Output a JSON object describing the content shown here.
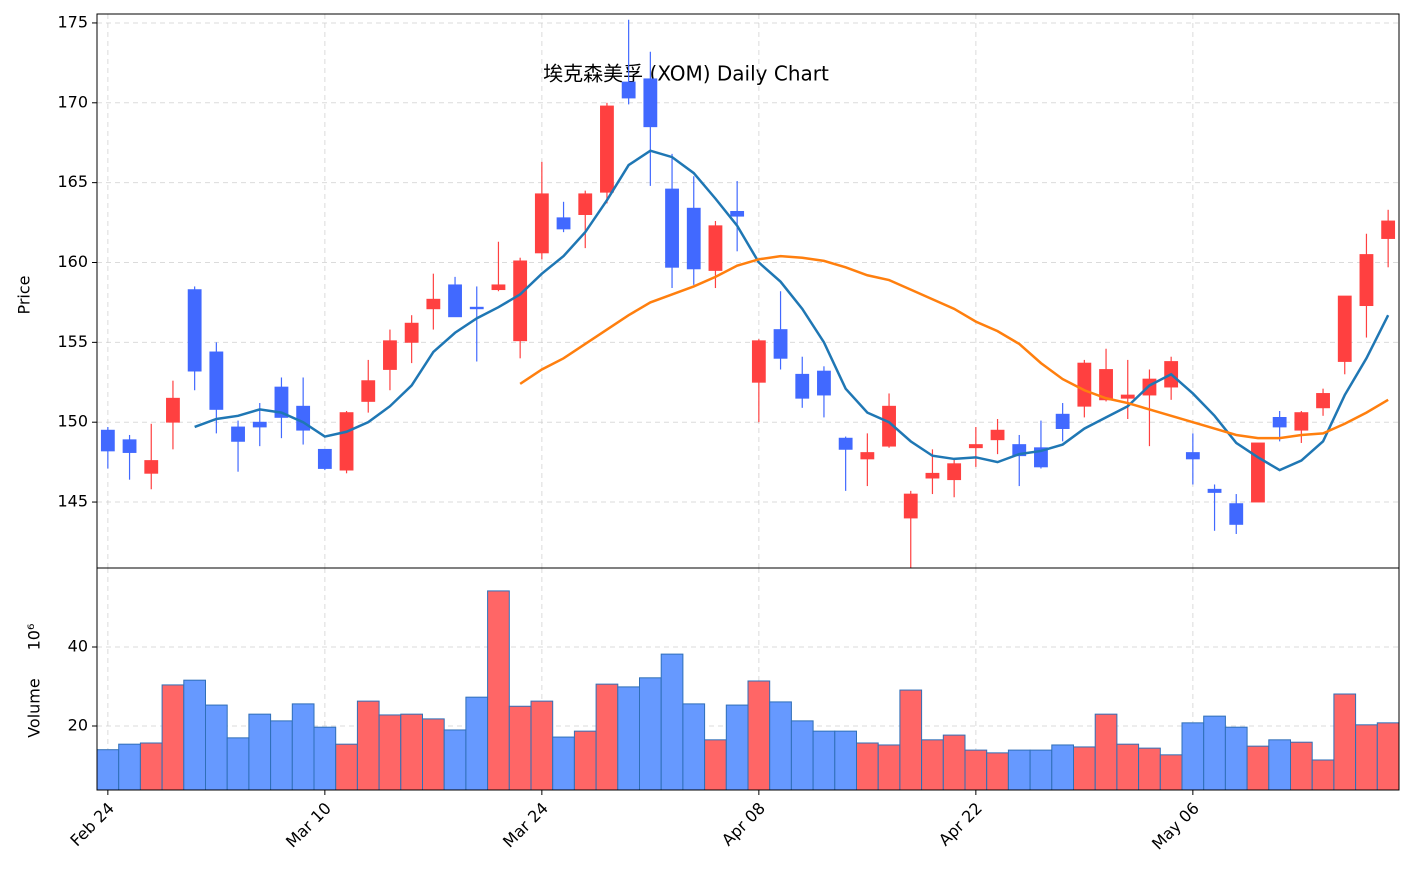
{
  "chart_data": [
    {
      "type": "candlestick",
      "title": "埃克森美孚 (XOM) Daily Chart",
      "ylabel": "Price",
      "open": [
        149.5,
        148.9,
        146.8,
        150.0,
        158.3,
        154.4,
        149.7,
        150.0,
        152.2,
        151.0,
        148.3,
        147.0,
        151.3,
        153.3,
        155.0,
        157.1,
        158.6,
        157.2,
        158.3,
        155.1,
        160.6,
        162.8,
        163.0,
        164.4,
        171.3,
        171.5,
        164.6,
        163.4,
        159.5,
        163.2,
        152.5,
        155.8,
        153.0,
        153.2,
        149.0,
        147.7,
        148.5,
        144.0,
        146.5,
        146.4,
        148.4,
        148.9,
        148.6,
        148.4,
        150.5,
        151.0,
        151.4,
        151.5,
        151.7,
        152.2,
        148.1,
        145.8,
        144.9,
        145.0,
        150.3,
        149.5,
        150.9,
        153.8,
        157.3,
        161.5
      ],
      "high": [
        149.7,
        149.2,
        149.9,
        152.6,
        158.5,
        155.0,
        150.1,
        151.2,
        152.8,
        152.8,
        148.3,
        150.7,
        153.9,
        155.8,
        156.7,
        159.3,
        159.1,
        158.5,
        161.3,
        160.3,
        166.3,
        163.8,
        164.5,
        170.0,
        175.2,
        173.2,
        166.8,
        165.4,
        162.6,
        165.1,
        155.2,
        158.2,
        154.1,
        153.5,
        149.1,
        149.3,
        151.8,
        145.7,
        148.3,
        147.7,
        149.7,
        150.2,
        149.2,
        150.1,
        151.2,
        153.9,
        154.6,
        153.9,
        153.3,
        154.1,
        149.3,
        146.1,
        145.5,
        148.7,
        150.7,
        150.7,
        152.1,
        157.9,
        161.8,
        163.3
      ],
      "low": [
        147.1,
        146.4,
        145.8,
        148.3,
        152.0,
        149.3,
        146.9,
        148.5,
        149.0,
        148.6,
        147.0,
        146.8,
        150.6,
        152.0,
        153.7,
        155.8,
        156.6,
        153.8,
        158.2,
        154.0,
        160.2,
        161.9,
        160.9,
        163.7,
        169.9,
        164.8,
        158.4,
        158.6,
        158.4,
        160.7,
        150.0,
        153.3,
        150.9,
        150.3,
        145.7,
        146.0,
        148.4,
        140.9,
        145.5,
        145.3,
        147.2,
        148.0,
        146.0,
        147.1,
        148.8,
        150.3,
        151.3,
        150.2,
        148.5,
        151.4,
        146.1,
        143.2,
        143.0,
        145.0,
        148.8,
        148.7,
        150.4,
        153.0,
        155.3,
        159.7
      ],
      "close": [
        148.2,
        148.1,
        147.6,
        151.5,
        153.2,
        150.8,
        148.8,
        149.7,
        150.3,
        149.5,
        147.1,
        150.6,
        152.6,
        155.1,
        156.2,
        157.7,
        156.6,
        157.1,
        158.6,
        160.1,
        164.3,
        162.1,
        164.3,
        169.8,
        170.3,
        168.5,
        159.7,
        159.6,
        162.3,
        162.9,
        155.1,
        154.0,
        151.5,
        151.7,
        148.3,
        148.1,
        151.0,
        145.5,
        146.8,
        147.4,
        148.6,
        149.5,
        147.9,
        147.2,
        149.6,
        153.7,
        153.3,
        151.7,
        152.7,
        153.8,
        147.7,
        145.6,
        143.6,
        148.7,
        149.7,
        150.6,
        151.8,
        157.9,
        160.5,
        162.6
      ],
      "up_color": "#ff4040",
      "down_color": "#4169ff",
      "lines": [
        {
          "color": "#1f77b4",
          "values": [
            null,
            null,
            null,
            null,
            149.7,
            150.2,
            150.4,
            150.8,
            150.6,
            150.0,
            149.1,
            149.4,
            150.0,
            151.0,
            152.3,
            154.4,
            155.6,
            156.5,
            157.2,
            158.0,
            159.3,
            160.4,
            161.9,
            163.9,
            166.1,
            167.0,
            166.6,
            165.6,
            164.0,
            162.3,
            160.0,
            158.8,
            157.1,
            155.0,
            152.1,
            150.6,
            150.0,
            148.8,
            147.9,
            147.7,
            147.8,
            147.5,
            148.0,
            148.2,
            148.6,
            149.6,
            150.3,
            151.0,
            152.3,
            153.0,
            151.8,
            150.4,
            148.7,
            147.8,
            147.0,
            147.6,
            148.8,
            151.7,
            154.0,
            156.7
          ]
        },
        {
          "color": "#ff7f0e",
          "values": [
            null,
            null,
            null,
            null,
            null,
            null,
            null,
            null,
            null,
            null,
            null,
            null,
            null,
            null,
            null,
            null,
            null,
            null,
            null,
            152.4,
            153.3,
            154.0,
            154.9,
            155.8,
            156.7,
            157.5,
            158.0,
            158.5,
            159.1,
            159.8,
            160.2,
            160.4,
            160.3,
            160.1,
            159.7,
            159.2,
            158.9,
            158.3,
            157.7,
            157.1,
            156.3,
            155.7,
            154.9,
            153.7,
            152.7,
            152.0,
            151.5,
            151.2,
            150.8,
            150.4,
            150.0,
            149.6,
            149.2,
            149.0,
            149.0,
            149.2,
            149.3,
            149.9,
            150.6,
            151.4
          ]
        }
      ],
      "xlim": [
        -0.5,
        59.5
      ],
      "ylim": [
        140.87,
        175.56
      ],
      "yticks": [
        145,
        150,
        155,
        160,
        165,
        170,
        175
      ],
      "grid": true
    },
    {
      "type": "bar",
      "ylabel": "Volume",
      "offset_label": "10⁶",
      "values": [
        14,
        15.4,
        15.7,
        30.4,
        31.6,
        25.3,
        17,
        23,
        21.3,
        25.6,
        19.7,
        15.4,
        26.3,
        22.8,
        23,
        21.8,
        19,
        27.3,
        54.2,
        25,
        26.3,
        17.2,
        18.7,
        30.6,
        29.9,
        32.2,
        38.2,
        25.6,
        16.5,
        25.3,
        31.4,
        26.1,
        21.3,
        18.7,
        18.7,
        15.7,
        15.2,
        29.1,
        16.5,
        17.7,
        13.9,
        13.2,
        13.9,
        13.9,
        15.2,
        14.7,
        23,
        15.4,
        14.4,
        12.7,
        20.8,
        22.5,
        19.7,
        14.9,
        16.5,
        15.9,
        11.4,
        28.1,
        20.3,
        20.8
      ],
      "up_color": "#ff6666",
      "down_color": "#6699ff",
      "edge_color": "#2f6fb8",
      "xlim": [
        -0.5,
        59.5
      ],
      "ylim": [
        3.8,
        60
      ],
      "yticks": [
        20,
        40
      ],
      "xticks": [
        {
          "value": 0,
          "label": "Feb 24"
        },
        {
          "value": 10,
          "label": "Mar 10"
        },
        {
          "value": 20,
          "label": "Mar 24"
        },
        {
          "value": 30,
          "label": "Apr 08"
        },
        {
          "value": 40,
          "label": "Apr 22"
        },
        {
          "value": 50,
          "label": "May 06"
        }
      ],
      "grid": true
    }
  ]
}
